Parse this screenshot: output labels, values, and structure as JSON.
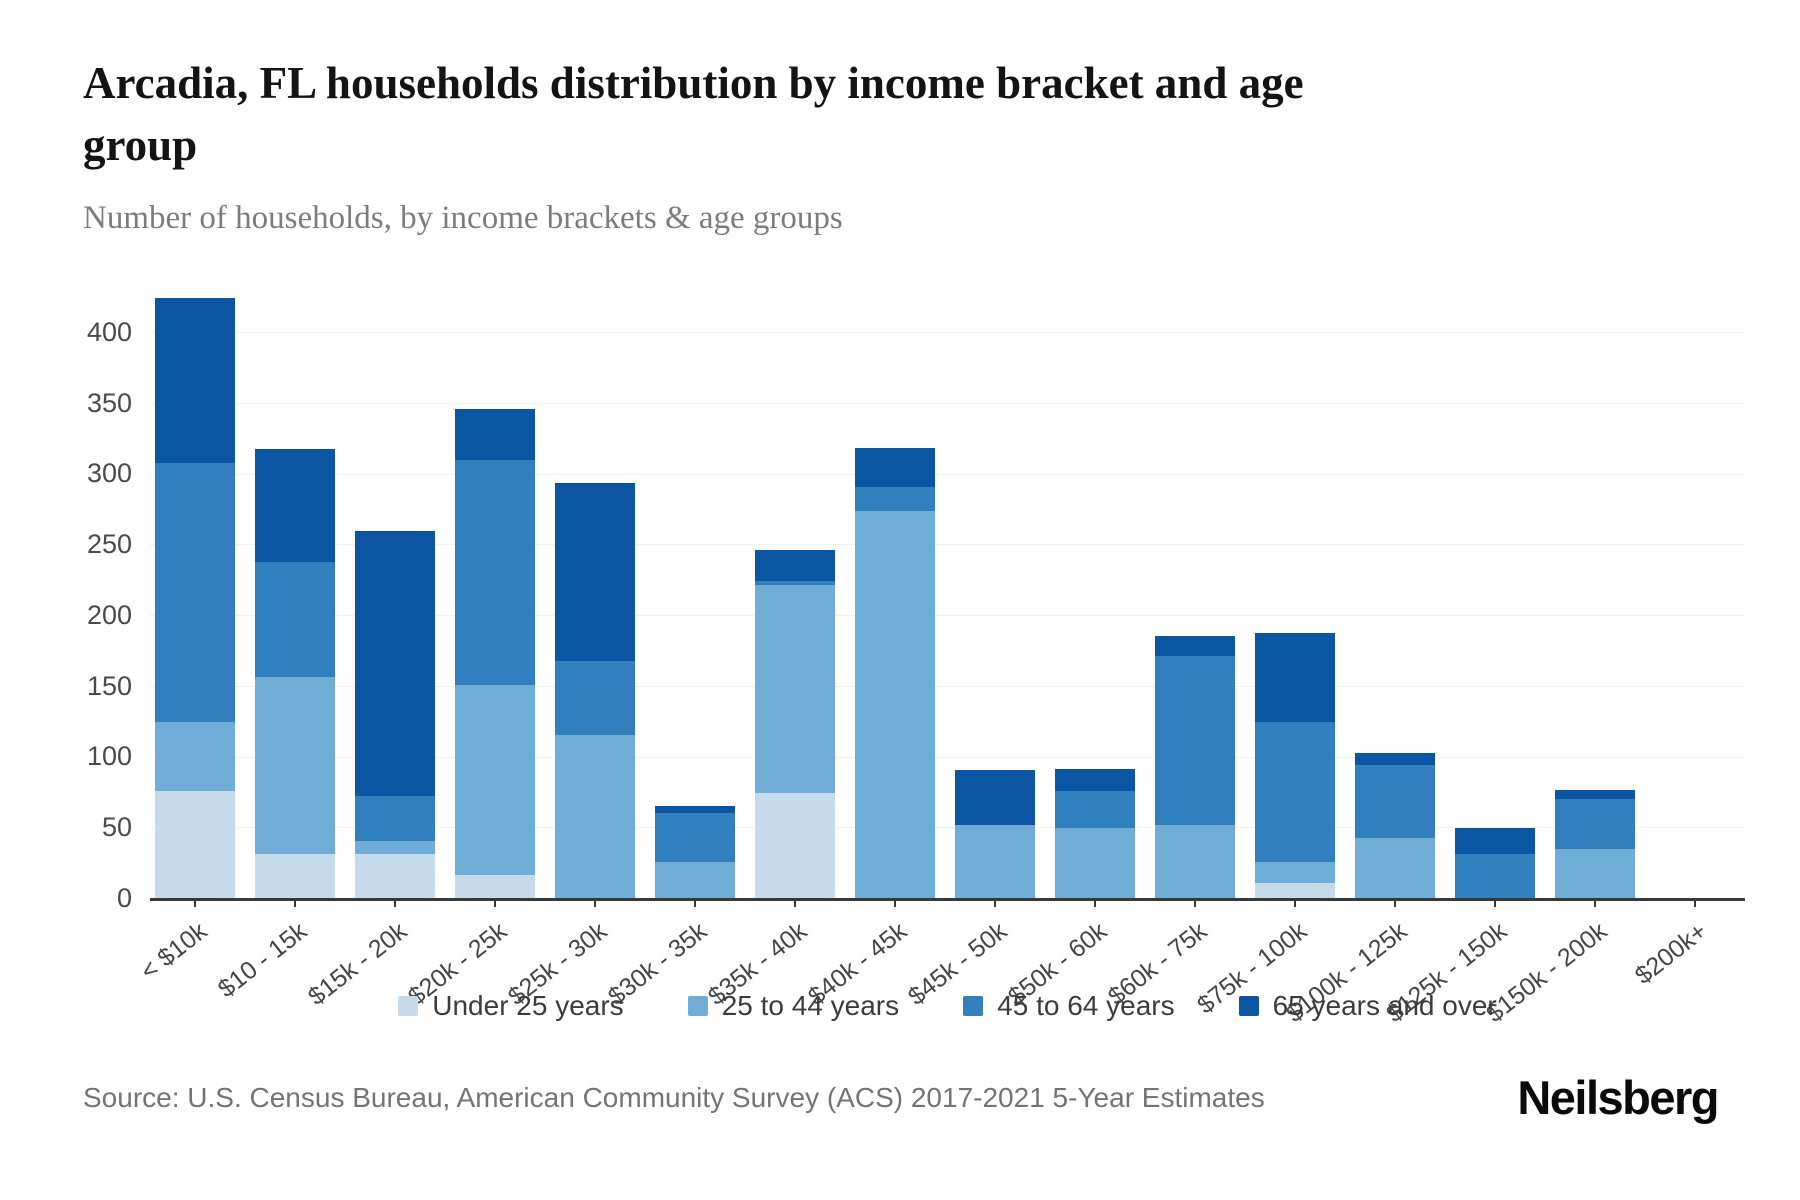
{
  "header": {
    "title": "Arcadia, FL households distribution by income bracket and age\ngroup",
    "subtitle": "Number of households, by income brackets & age groups"
  },
  "footer": {
    "source": "Source: U.S. Census Bureau, American Community Survey (ACS) 2017-2021 5-Year Estimates",
    "logo_text": "Neilsberg"
  },
  "chart_data": {
    "type": "bar",
    "stacked": true,
    "title": "Arcadia, FL households distribution by income bracket and age group",
    "xlabel": "",
    "ylabel": "Number of households",
    "categories": [
      "< $10k",
      "$10 - 15k",
      "$15k - 20k",
      "$20k - 25k",
      "$25k - 30k",
      "$30k - 35k",
      "$35k - 40k",
      "$40k - 45k",
      "$45k - 50k",
      "$50k - 60k",
      "$60k - 75k",
      "$75k - 100k",
      "$100k - 125k",
      "$125k - 150k",
      "$150k - 200k",
      "$200k+"
    ],
    "series": [
      {
        "name": "Under 25 years",
        "color": "#c6dbea",
        "values": [
          76,
          32,
          32,
          17,
          0,
          0,
          75,
          0,
          0,
          0,
          0,
          11,
          0,
          0,
          0,
          0
        ]
      },
      {
        "name": "25 to 44 years",
        "color": "#6fadd6",
        "values": [
          49,
          125,
          9,
          134,
          116,
          26,
          147,
          274,
          52,
          50,
          52,
          15,
          43,
          0,
          35,
          0
        ]
      },
      {
        "name": "45 to 64 years",
        "color": "#3180bd",
        "values": [
          183,
          81,
          32,
          159,
          52,
          35,
          3,
          17,
          0,
          26,
          120,
          99,
          52,
          32,
          36,
          0
        ]
      },
      {
        "name": "65 years and over",
        "color": "#0c55a3",
        "values": [
          117,
          80,
          187,
          36,
          126,
          5,
          22,
          28,
          39,
          16,
          14,
          63,
          8,
          18,
          6,
          0
        ]
      }
    ],
    "totals": [
      425,
      318,
      260,
      346,
      294,
      66,
      247,
      319,
      91,
      92,
      186,
      188,
      103,
      50,
      77,
      0
    ],
    "yticks": [
      0,
      50,
      100,
      150,
      200,
      250,
      300,
      350,
      400
    ],
    "ylim": [
      0,
      453
    ],
    "grid": "horizontal",
    "legend_position": "bottom",
    "separator_color": "#ffffff"
  }
}
